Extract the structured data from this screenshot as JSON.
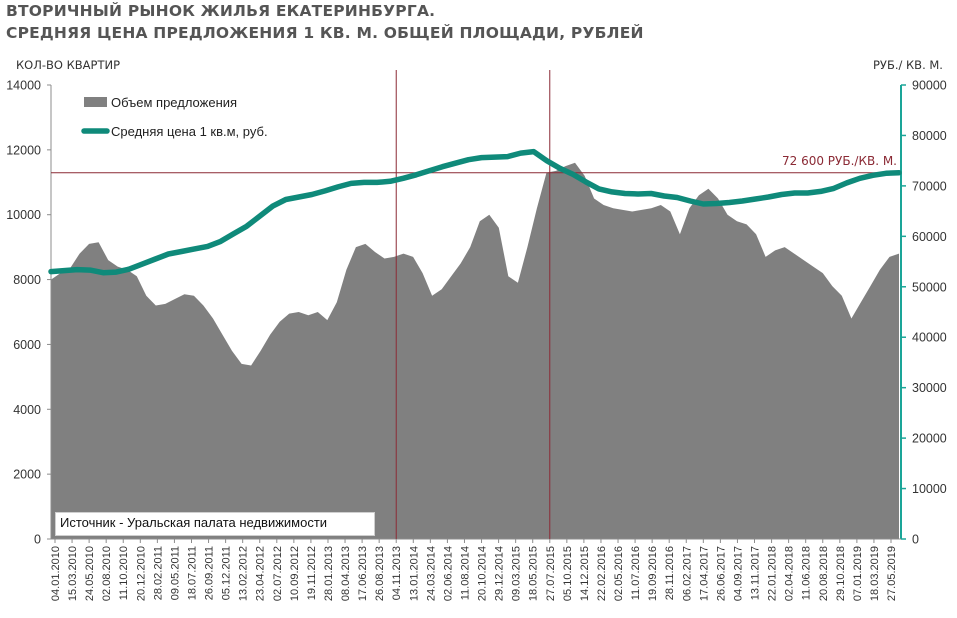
{
  "header": {
    "title_line1": "ВТОРИЧНЫЙ РЫНОК ЖИЛЬЯ ЕКАТЕРИНБУРГА.",
    "title_line2": "СРЕДНЯЯ ЦЕНА ПРЕДЛОЖЕНИЯ 1 КВ. М. ОБЩЕЙ ПЛОЩАДИ, РУБЛЕЙ"
  },
  "source": "Источник - Уральская палата недвижимости",
  "colors": {
    "area": "#808080",
    "line": "#0f8a7a",
    "reference": "#8b2a35",
    "right_axis": "#1aa598"
  },
  "chart_data": {
    "type": "area+line",
    "ylabel_left": "КОЛ-ВО КВАРТИР",
    "ylabel_right": "РУБ./ КВ. М.",
    "ylim_left": [
      0,
      14000
    ],
    "ylim_right": [
      0,
      90000
    ],
    "yticks_left": [
      "0",
      "2000",
      "4000",
      "6000",
      "8000",
      "10000",
      "12000",
      "14000"
    ],
    "yticks_right": [
      "0",
      "10000",
      "20000",
      "30000",
      "40000",
      "50000",
      "60000",
      "70000",
      "80000",
      "90000"
    ],
    "xtick_labels": [
      "04.01.2010",
      "15.03.2010",
      "24.05.2010",
      "02.08.2010",
      "11.10.2010",
      "20.12.2010",
      "28.02.2011",
      "09.05.2011",
      "18.07.2011",
      "26.09.2011",
      "05.12.2011",
      "13.02.2012",
      "23.04.2012",
      "02.07.2012",
      "10.09.2012",
      "19.11.2012",
      "28.01.2013",
      "08.04.2013",
      "17.06.2013",
      "26.08.2013",
      "04.11.2013",
      "13.01.2014",
      "24.03.2014",
      "02.06.2014",
      "11.08.2014",
      "20.10.2014",
      "29.12.2014",
      "09.03.2015",
      "18.05.2015",
      "27.07.2015",
      "05.10.2015",
      "14.12.2015",
      "22.02.2016",
      "02.05.2016",
      "11.07.2016",
      "19.09.2016",
      "28.11.2016",
      "06.02.2017",
      "17.04.2017",
      "26.06.2017",
      "04.09.2017",
      "13.11.2017",
      "22.01.2018",
      "02.04.2018",
      "11.06.2018",
      "20.08.2018",
      "29.10.2018",
      "07.01.2019",
      "18.03.2019",
      "27.05.2019"
    ],
    "legend": [
      "Объем предложения",
      "Средняя цена 1 кв.м, руб."
    ],
    "series": [
      {
        "name": "Объем предложения",
        "axis": "left",
        "kind": "area",
        "values": [
          8000,
          8200,
          8350,
          8800,
          9100,
          9150,
          8600,
          8400,
          8300,
          8100,
          7500,
          7200,
          7250,
          7400,
          7550,
          7500,
          7200,
          6800,
          6300,
          5800,
          5400,
          5350,
          5800,
          6300,
          6700,
          6950,
          7000,
          6900,
          7000,
          6750,
          7300,
          8300,
          9000,
          9100,
          8850,
          8650,
          8700,
          8800,
          8700,
          8200,
          7500,
          7700,
          8100,
          8500,
          9000,
          9800,
          10000,
          9600,
          8100,
          7900,
          9000,
          10200,
          11300,
          11350,
          11500,
          11600,
          11200,
          10500,
          10300,
          10200,
          10150,
          10100,
          10150,
          10200,
          10300,
          10100,
          9400,
          10200,
          10600,
          10800,
          10500,
          10000,
          9800,
          9700,
          9400,
          8700,
          8900,
          9000,
          8800,
          8600,
          8400,
          8200,
          7800,
          7500,
          6800,
          7300,
          7800,
          8300,
          8700,
          8800
        ]
      },
      {
        "name": "Средняя цена 1 кв.м, руб.",
        "axis": "right",
        "kind": "line",
        "values": [
          53000,
          53200,
          53400,
          53300,
          52800,
          52900,
          53500,
          54500,
          55500,
          56500,
          57000,
          57500,
          58000,
          59000,
          60500,
          62000,
          64000,
          66000,
          67300,
          67800,
          68300,
          69000,
          69800,
          70500,
          70700,
          70700,
          70900,
          71500,
          72200,
          73000,
          73800,
          74500,
          75200,
          75600,
          75700,
          75800,
          76500,
          76800,
          75000,
          73500,
          72300,
          70800,
          69400,
          68800,
          68500,
          68400,
          68500,
          68000,
          67700,
          67000,
          66400,
          66500,
          66700,
          67000,
          67400,
          67800,
          68300,
          68600,
          68600,
          68900,
          69500,
          70600,
          71500,
          72100,
          72500,
          72600
        ]
      }
    ],
    "reference_line": {
      "value": 72600,
      "axis": "right",
      "label": "72 600 РУБ./КВ. М."
    },
    "vertical_markers": [
      "04.11.2013",
      "27.07.2015"
    ]
  }
}
